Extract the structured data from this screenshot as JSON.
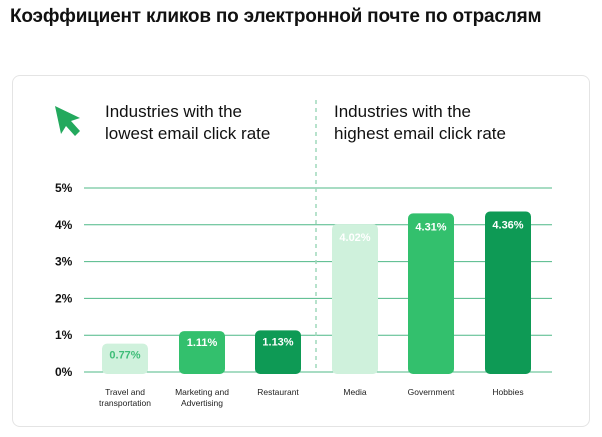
{
  "page": {
    "title": "Коэффициент кликов по электронной почте по отраслям"
  },
  "colors": {
    "gridline": "#4fb887",
    "divider": "#9fd8bb",
    "arrow": "#23a95d",
    "bar_light": "#cff1dc",
    "bar_light_text": "#3fbd78",
    "bar_mid": "#33c06d",
    "bar_dark": "#0e9a55"
  },
  "chart_data": {
    "type": "bar",
    "groups": [
      {
        "heading_lines": [
          "Industries with the",
          "lowest email click rate"
        ],
        "icon": "cursor-arrow-icon"
      },
      {
        "heading_lines": [
          "Industries with the",
          "highest email click rate"
        ]
      }
    ],
    "categories": [
      "Travel and\ntransportation",
      "Marketing and\nAdvertising",
      "Restaurant",
      "Media",
      "Government",
      "Hobbies"
    ],
    "values": [
      0.77,
      1.11,
      1.13,
      4.02,
      4.31,
      4.36
    ],
    "data_labels": [
      "0.77%",
      "1.11%",
      "1.13%",
      "4.02%",
      "4.31%",
      "4.36%"
    ],
    "bar_colors": [
      "#cff1dc",
      "#33c06d",
      "#0e9a55",
      "#cff1dc",
      "#33c06d",
      "#0e9a55"
    ],
    "label_colors": [
      "#3fbd78",
      "#ffffff",
      "#ffffff",
      "#ffffff",
      "#ffffff",
      "#ffffff"
    ],
    "y_ticks": [
      0,
      1,
      2,
      3,
      4,
      5
    ],
    "y_tick_labels": [
      "0%",
      "1%",
      "2%",
      "3%",
      "4%",
      "5%"
    ],
    "ylim": [
      0,
      5
    ],
    "grid": true
  }
}
